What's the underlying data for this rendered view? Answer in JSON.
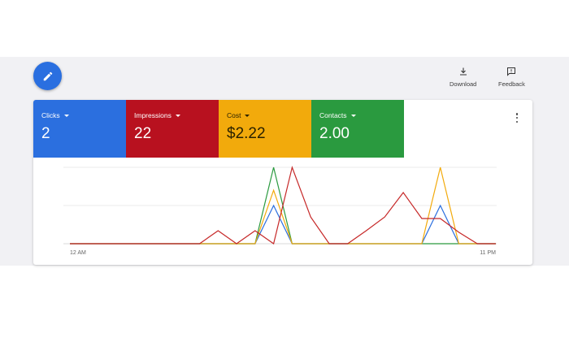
{
  "toolbar": {
    "download_label": "Download",
    "feedback_label": "Feedback",
    "download_icon": "download-icon",
    "feedback_icon": "feedback-icon",
    "edit_icon": "pencil-icon"
  },
  "metrics": [
    {
      "label": "Clicks",
      "value": "2",
      "color": "#2b6fdf"
    },
    {
      "label": "Impressions",
      "value": "22",
      "color": "#b8111f"
    },
    {
      "label": "Cost",
      "value": "$2.22",
      "color": "#f2aa0c"
    },
    {
      "label": "Contacts",
      "value": "2.00",
      "color": "#2a9a3f"
    }
  ],
  "chart_data": {
    "type": "line",
    "x_range_labels": [
      "12 AM",
      "11 PM"
    ],
    "x": [
      0,
      1,
      2,
      3,
      4,
      5,
      6,
      7,
      8,
      9,
      10,
      11,
      12,
      13,
      14,
      15,
      16,
      17,
      18,
      19,
      20,
      21,
      22,
      23
    ],
    "ylim": [
      0,
      1
    ],
    "grid": true,
    "series": [
      {
        "color": "#2a9a3f",
        "values": [
          0,
          0,
          0,
          0,
          0,
          0,
          0,
          0,
          0,
          0,
          0,
          1,
          0,
          0,
          0,
          0,
          0,
          0,
          0,
          0,
          0,
          0,
          0,
          0
        ]
      },
      {
        "color": "#2b6fdf",
        "values": [
          0,
          0,
          0,
          0,
          0,
          0,
          0,
          0,
          0,
          0,
          0,
          0.5,
          0,
          0,
          0,
          0,
          0,
          0,
          0,
          0,
          0.5,
          0,
          0,
          0
        ]
      },
      {
        "color": "#f2aa0c",
        "values": [
          0,
          0,
          0,
          0,
          0,
          0,
          0,
          0,
          0,
          0,
          0,
          0.7,
          0,
          0,
          0,
          0,
          0,
          0,
          0,
          0,
          1,
          0,
          0,
          0
        ]
      },
      {
        "color": "#c62828",
        "values": [
          0,
          0,
          0,
          0,
          0,
          0,
          0,
          0,
          0.17,
          0,
          0.17,
          0,
          1,
          0.35,
          0,
          0,
          0.17,
          0.35,
          0.67,
          0.33,
          0.33,
          0.15,
          0,
          0
        ]
      }
    ]
  }
}
